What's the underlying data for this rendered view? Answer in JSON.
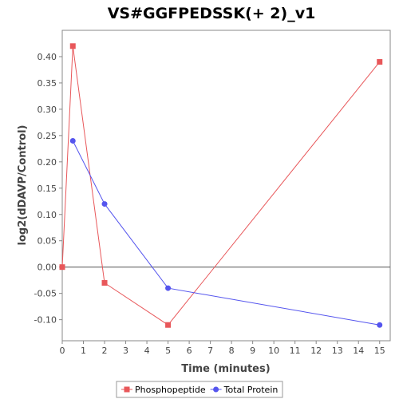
{
  "chart_data": {
    "type": "line",
    "title": "VS#GGFPEDSSK(+ 2)_v1",
    "xlabel": "Time (minutes)",
    "ylabel": "log2(dDAVP/Control)",
    "xlim": [
      0,
      15.5
    ],
    "ylim": [
      -0.14,
      0.45
    ],
    "x_ticks": [
      0,
      1,
      2,
      3,
      4,
      5,
      6,
      7,
      8,
      9,
      10,
      11,
      12,
      13,
      14,
      15
    ],
    "y_ticks": [
      -0.1,
      -0.05,
      0.0,
      0.05,
      0.1,
      0.15,
      0.2,
      0.25,
      0.3,
      0.35,
      0.4
    ],
    "y_tick_labels": [
      "-0.10",
      "-0.05",
      "0.00",
      "0.05",
      "0.10",
      "0.15",
      "0.20",
      "0.25",
      "0.30",
      "0.35",
      "0.40"
    ],
    "zero_line": true,
    "grid": false,
    "legend_position": "bottom",
    "series": [
      {
        "name": "Phosphopeptide",
        "color": "#e8575a",
        "marker": "square",
        "x": [
          0,
          0.5,
          2,
          5,
          15
        ],
        "y": [
          0.0,
          0.42,
          -0.03,
          -0.11,
          0.39
        ]
      },
      {
        "name": "Total Protein",
        "color": "#5555ee",
        "marker": "circle",
        "x": [
          0.5,
          2,
          5,
          15
        ],
        "y": [
          0.24,
          0.12,
          -0.04,
          -0.11
        ]
      }
    ]
  }
}
